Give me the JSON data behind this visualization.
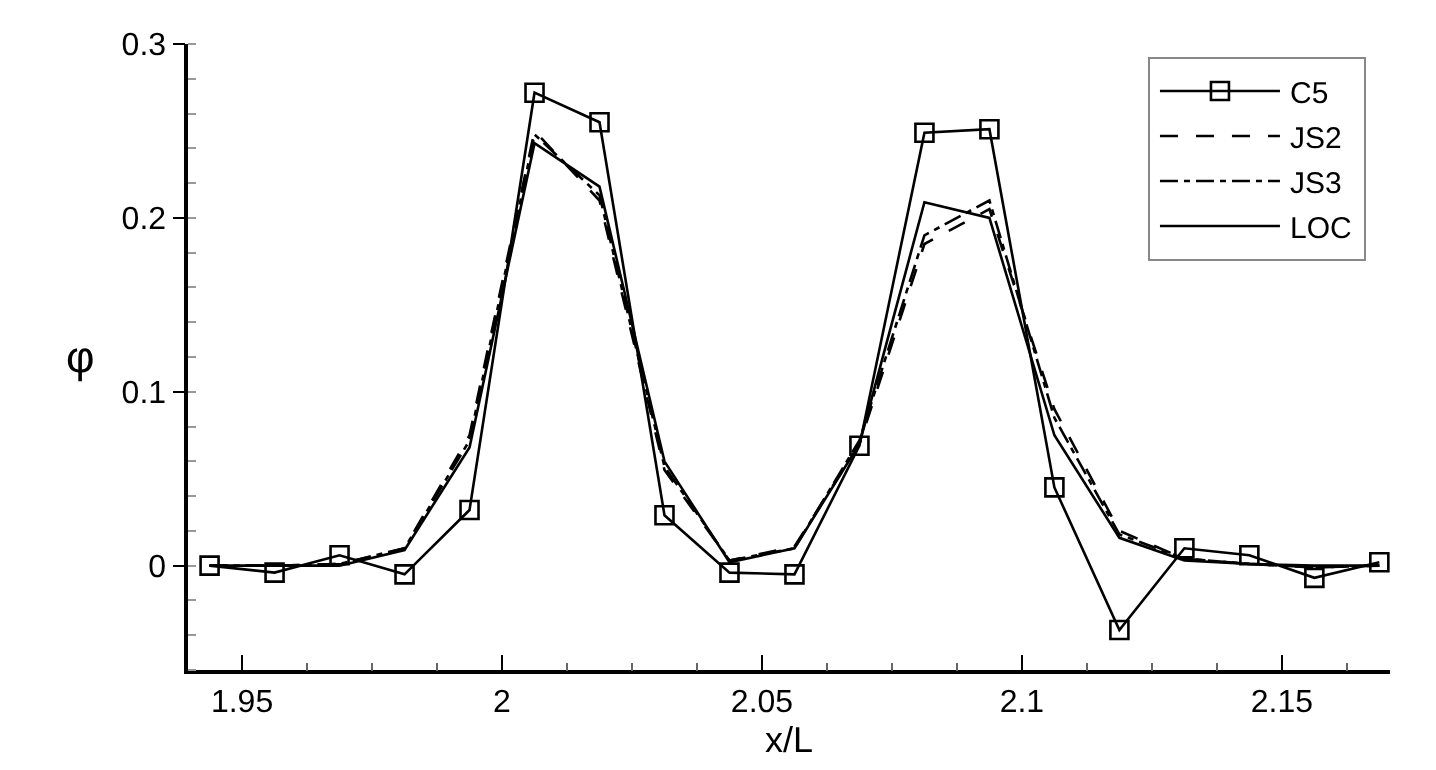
{
  "chart_data": {
    "type": "line",
    "xlabel": "x/L",
    "ylabel": "φ",
    "x": [
      1.94375,
      1.95625,
      1.96875,
      1.98125,
      1.99375,
      2.00625,
      2.01875,
      2.03125,
      2.04375,
      2.05625,
      2.06875,
      2.08125,
      2.09375,
      2.10625,
      2.11875,
      2.13125,
      2.14375,
      2.15625,
      2.16875
    ],
    "series": [
      {
        "name": "C5",
        "color": "#000000",
        "marker": "square",
        "line_style": "solid",
        "values": [
          0,
          -0.004,
          0.006,
          -0.005,
          0.032,
          0.272,
          0.255,
          0.029,
          -0.004,
          -0.005,
          0.069,
          0.249,
          0.251,
          0.045,
          -0.037,
          0.01,
          0.006,
          -0.007,
          0.002
        ]
      },
      {
        "name": "JS2",
        "color": "#000000",
        "marker": "none",
        "line_style": "dashed",
        "values": [
          0,
          0,
          0.001,
          0.01,
          0.075,
          0.25,
          0.21,
          0.055,
          0.003,
          0.011,
          0.07,
          0.185,
          0.205,
          0.09,
          0.02,
          0.004,
          0.001,
          -0.001,
          0
        ]
      },
      {
        "name": "JS3",
        "color": "#000000",
        "marker": "none",
        "line_style": "dashdot",
        "values": [
          0,
          0,
          0.001,
          0.01,
          0.072,
          0.248,
          0.213,
          0.057,
          0.003,
          0.01,
          0.072,
          0.19,
          0.21,
          0.085,
          0.018,
          0.004,
          0.001,
          -0.001,
          0
        ]
      },
      {
        "name": "LOC",
        "color": "#000000",
        "marker": "none",
        "line_style": "solid",
        "values": [
          0,
          0,
          0,
          0.009,
          0.068,
          0.243,
          0.218,
          0.06,
          0.002,
          0.01,
          0.07,
          0.209,
          0.2,
          0.075,
          0.016,
          0.003,
          0.001,
          0,
          0
        ]
      }
    ],
    "xlim": [
      1.9396,
      2.1708
    ],
    "xticks": [
      {
        "value": 1.95,
        "label": "1.95"
      },
      {
        "value": 2,
        "label": "2"
      },
      {
        "value": 2.05,
        "label": "2.05"
      },
      {
        "value": 2.1,
        "label": "2.1"
      },
      {
        "value": 2.15,
        "label": "2.15"
      }
    ],
    "ylim": [
      -0.06,
      0.3
    ],
    "yticks": [
      0,
      0.1,
      0.2,
      0.3
    ],
    "grid": false,
    "legend": "top right"
  }
}
